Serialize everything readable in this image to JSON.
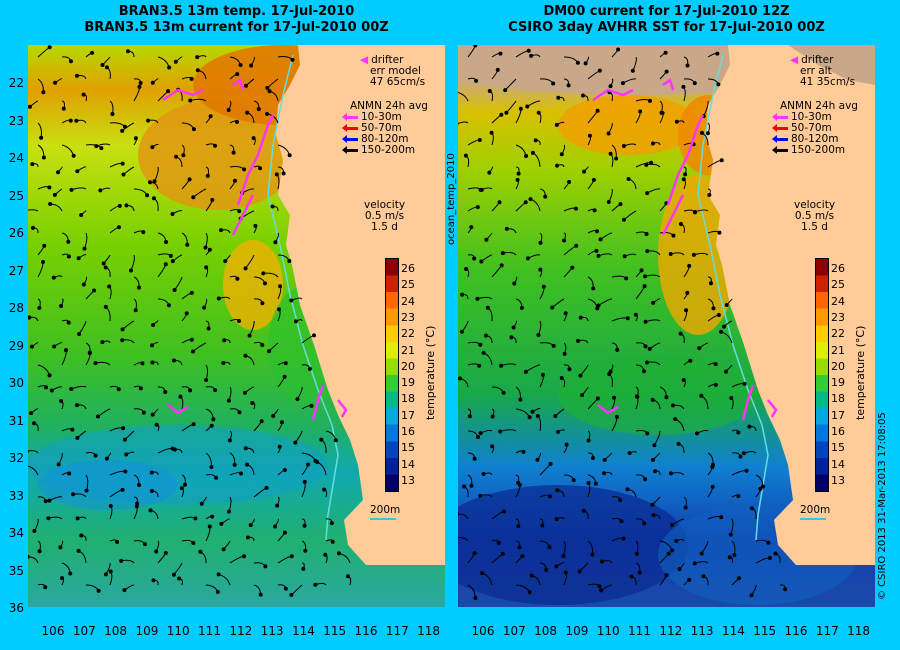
{
  "left_panel": {
    "title_line1": "BRAN3.5 13m temp. 17-Jul-2010",
    "title_line2": "BRAN3.5 13m current for 17-Jul-2010 00Z",
    "drifter_label": "drifter",
    "err_label": "err model",
    "err_value": "47 65cm/s",
    "velocity_label": "velocity",
    "velocity_scale": "0.5 m/s",
    "velocity_time": "1.5 d",
    "isobath_label": "200m"
  },
  "right_panel": {
    "title_line1": "DM00 current for 17-Jul-2010 12Z",
    "title_line2": "CSIRO 3day AVHRR SST for 17-Jul-2010 00Z",
    "drifter_label": "drifter",
    "err_label": "err alt",
    "err_value": "41 35cm/s",
    "velocity_label": "velocity",
    "velocity_scale": "0.5 m/s",
    "velocity_time": "1.5 d",
    "isobath_label": "200m"
  },
  "mooring_legend": {
    "title": "ANMN 24h avg",
    "items": [
      {
        "label": "10-30m",
        "color": "#ff33ff"
      },
      {
        "label": "50-70m",
        "color": "#ff0000"
      },
      {
        "label": "80-120m",
        "color": "#0000ff"
      },
      {
        "label": "150-200m",
        "color": "#000000"
      }
    ]
  },
  "colorbar": {
    "title": "temperature (°C)",
    "ticks": [
      "26",
      "25",
      "24",
      "23",
      "22",
      "21",
      "20",
      "19",
      "18",
      "17",
      "16",
      "15",
      "14",
      "13"
    ],
    "colors": [
      "#8b0000",
      "#cc2200",
      "#ff6600",
      "#ff9900",
      "#ffcc00",
      "#ddee00",
      "#99dd00",
      "#33cc33",
      "#00bb88",
      "#00aadd",
      "#0077dd",
      "#0044bb",
      "#002299",
      "#000066"
    ]
  },
  "lat_labels": [
    "22",
    "23",
    "24",
    "25",
    "26",
    "27",
    "28",
    "29",
    "30",
    "31",
    "32",
    "33",
    "34",
    "35",
    "36"
  ],
  "lon_labels": [
    "106",
    "107",
    "108",
    "109",
    "110",
    "111",
    "112",
    "113",
    "114",
    "115",
    "116",
    "117",
    "118"
  ],
  "side_label": "ocean_temp_2010",
  "credit": "© CSIRO 2013   31-Mar-2013 17:08:05",
  "colors": {
    "background": "#00ccff",
    "land": "#ffcc99",
    "cloud": "#c8a888",
    "drifter": "#ff33ff"
  }
}
